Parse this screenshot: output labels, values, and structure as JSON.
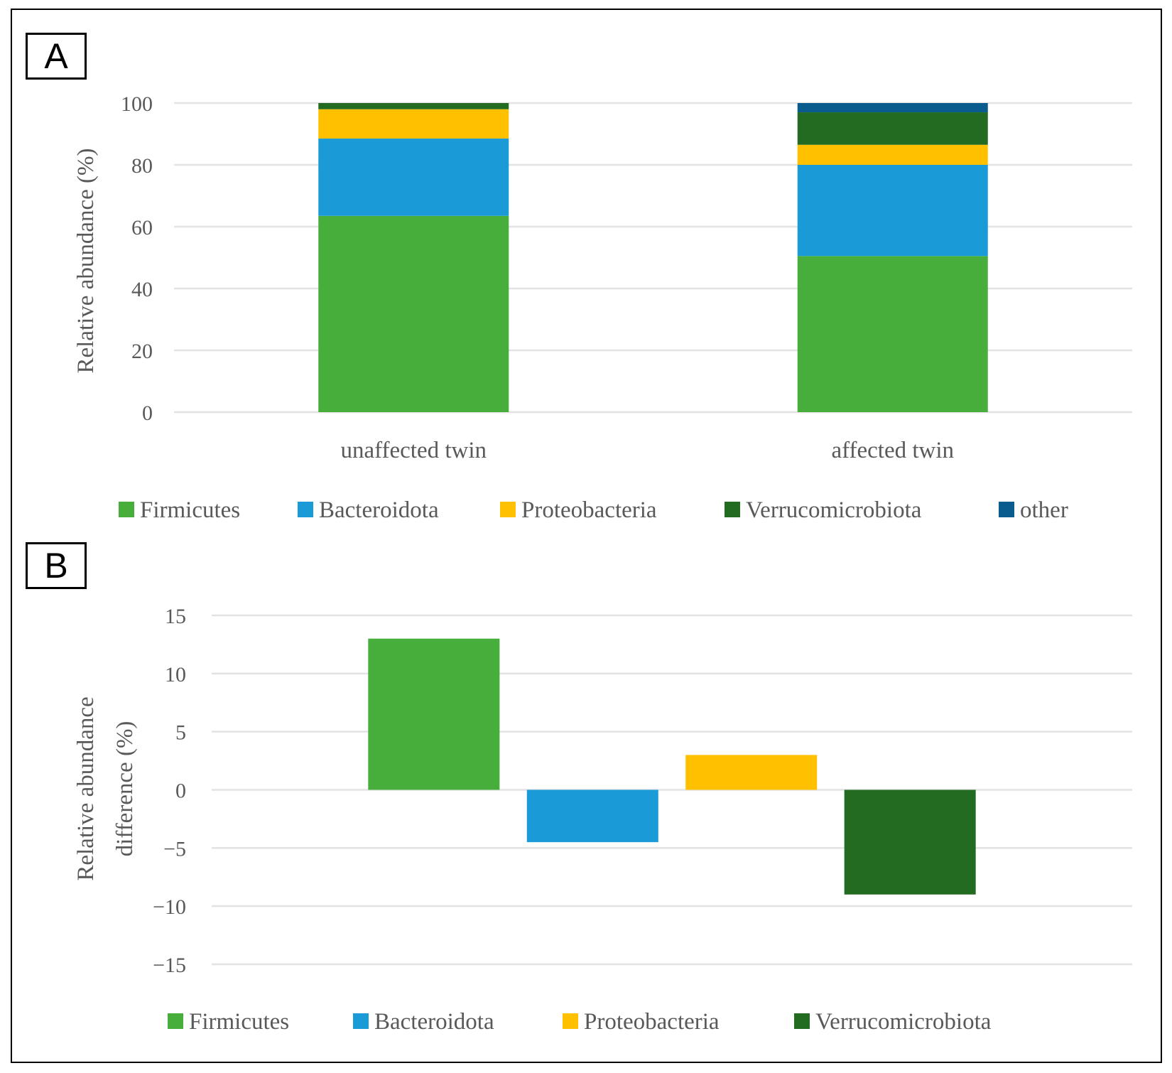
{
  "panels": {
    "a_label": "A",
    "b_label": "B"
  },
  "colors": {
    "Firmicutes": "#47AE3C",
    "Bacteroidota": "#1A9BD7",
    "Proteobacteria": "#FFC000",
    "Verrucomicrobiota": "#236B20",
    "other": "#0B5C8E",
    "grid": "#e3e3e3",
    "text": "#595959"
  },
  "chart_data": [
    {
      "type": "bar",
      "stacked": true,
      "panel": "A",
      "categories": [
        "unaffected twin",
        "affected twin"
      ],
      "series": [
        {
          "name": "Firmicutes",
          "values": [
            63.5,
            50.5
          ]
        },
        {
          "name": "Bacteroidota",
          "values": [
            25,
            29.5
          ]
        },
        {
          "name": "Proteobacteria",
          "values": [
            9.5,
            6.5
          ]
        },
        {
          "name": "Verrucomicrobiota",
          "values": [
            2,
            10.5
          ]
        },
        {
          "name": "other",
          "values": [
            0,
            3
          ]
        }
      ],
      "ylabel": "Relative abundance (%)",
      "ylim": [
        0,
        100
      ],
      "yticks": [
        "0",
        "20",
        "40",
        "60",
        "80",
        "100"
      ],
      "legend": [
        "Firmicutes",
        "Bacteroidota",
        "Proteobacteria",
        "Verrucomicrobiota",
        "other"
      ],
      "legend_position": "bottom",
      "grid": true
    },
    {
      "type": "bar",
      "panel": "B",
      "categories": [
        "Firmicutes",
        "Bacteroidota",
        "Proteobacteria",
        "Verrucomicrobiota"
      ],
      "values": [
        13,
        -4.5,
        3,
        -9
      ],
      "ylabel_line1": "Relative abundance",
      "ylabel_line2": "difference (%)",
      "ylim": [
        -15,
        15
      ],
      "yticks": [
        "−15",
        "−10",
        "−5",
        "0",
        "5",
        "10",
        "15"
      ],
      "legend": [
        "Firmicutes",
        "Bacteroidota",
        "Proteobacteria",
        "Verrucomicrobiota"
      ],
      "legend_position": "bottom",
      "grid": true
    }
  ]
}
